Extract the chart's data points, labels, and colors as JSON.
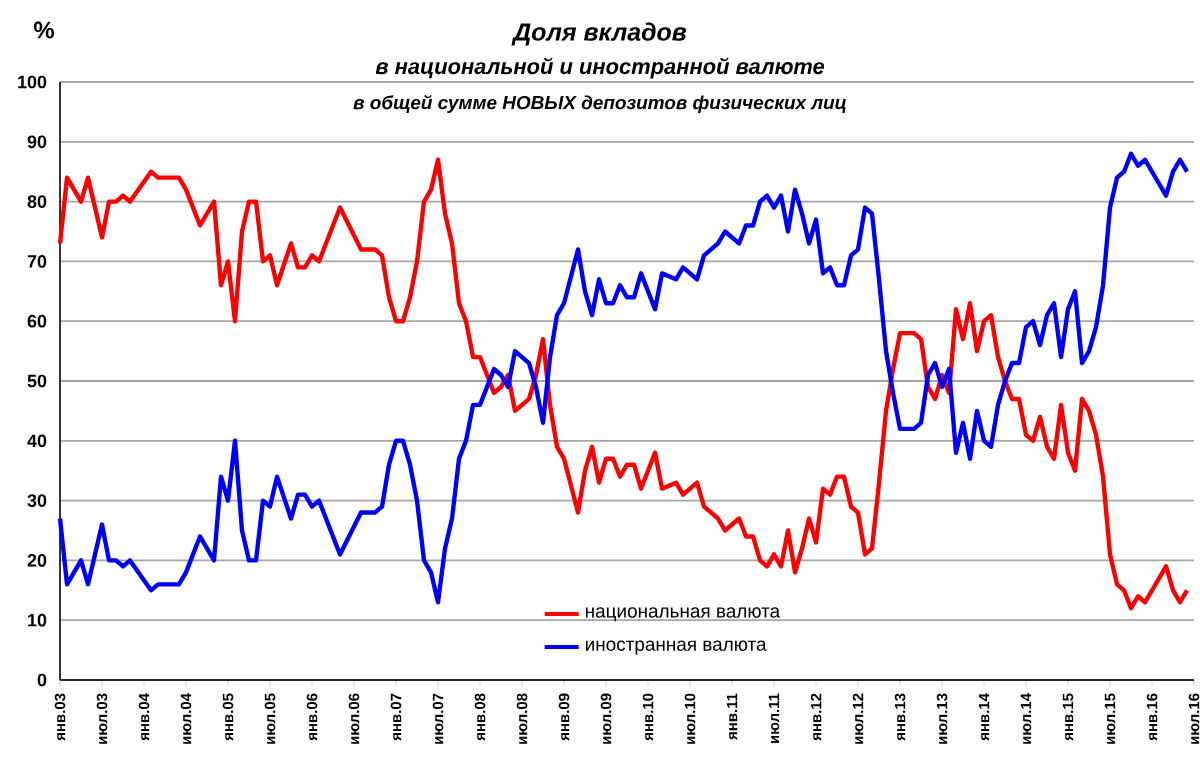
{
  "chart_data": {
    "type": "line",
    "title": "Доля вкладов",
    "subtitle": "в национальной  и иностранной  валюте",
    "annotations": [
      "в общей сумме **НОВЫХ** депозитов физических лиц"
    ],
    "ylabel": "%",
    "x": [
      "2003-01",
      "2003-02",
      "2003-04",
      "2003-05",
      "2003-07",
      "2003-08",
      "2003-09",
      "2003-10",
      "2003-11",
      "2004-02",
      "2004-03",
      "2004-05",
      "2004-06",
      "2004-07",
      "2004-09",
      "2004-11",
      "2004-12",
      "2005-01",
      "2005-02",
      "2005-03",
      "2005-04",
      "2005-05",
      "2005-06",
      "2005-07",
      "2005-08",
      "2005-10",
      "2005-11",
      "2005-12",
      "2006-01",
      "2006-02",
      "2006-05",
      "2006-08",
      "2006-10",
      "2006-11",
      "2006-12",
      "2007-01",
      "2007-02",
      "2007-03",
      "2007-04",
      "2007-05",
      "2007-06",
      "2007-07",
      "2007-08",
      "2007-09",
      "2007-10",
      "2007-11",
      "2007-12",
      "2008-01",
      "2008-03",
      "2008-04",
      "2008-05",
      "2008-06",
      "2008-08",
      "2008-09",
      "2008-10",
      "2008-11",
      "2008-12",
      "2009-01",
      "2009-03",
      "2009-04",
      "2009-05",
      "2009-06",
      "2009-07",
      "2009-08",
      "2009-09",
      "2009-10",
      "2009-11",
      "2009-12",
      "2010-02",
      "2010-03",
      "2010-05",
      "2010-06",
      "2010-08",
      "2010-09",
      "2010-11",
      "2010-12",
      "2011-02",
      "2011-03",
      "2011-04",
      "2011-05",
      "2011-06",
      "2011-07",
      "2011-08",
      "2011-09",
      "2011-10",
      "2011-11",
      "2011-12",
      "2012-01",
      "2012-02",
      "2012-03",
      "2012-04",
      "2012-05",
      "2012-06",
      "2012-07",
      "2012-08",
      "2012-09",
      "2012-10",
      "2012-11",
      "2012-12",
      "2013-01",
      "2013-03",
      "2013-04",
      "2013-05",
      "2013-06",
      "2013-07",
      "2013-08",
      "2013-09",
      "2013-10",
      "2013-11",
      "2013-12",
      "2014-01",
      "2014-02",
      "2014-03",
      "2014-04",
      "2014-05",
      "2014-06",
      "2014-07",
      "2014-08",
      "2014-09",
      "2014-10",
      "2014-11",
      "2014-12",
      "2015-01",
      "2015-02",
      "2015-03",
      "2015-04",
      "2015-05",
      "2015-06",
      "2015-07",
      "2015-08",
      "2015-09",
      "2015-10",
      "2015-11",
      "2015-12",
      "2016-01",
      "2016-03",
      "2016-04",
      "2016-05",
      "2016-06"
    ],
    "series": [
      {
        "name": "национальная валюта",
        "color": "#ff0000",
        "values": [
          73,
          84,
          80,
          84,
          74,
          80,
          80,
          81,
          80,
          85,
          84,
          84,
          84,
          82,
          76,
          80,
          66,
          70,
          60,
          75,
          80,
          80,
          70,
          71,
          66,
          73,
          69,
          69,
          71,
          70,
          79,
          72,
          72,
          71,
          64,
          60,
          60,
          64,
          70,
          80,
          82,
          87,
          78,
          73,
          63,
          60,
          54,
          54,
          48,
          49,
          51,
          45,
          47,
          51,
          57,
          46,
          39,
          37,
          28,
          35,
          39,
          33,
          37,
          37,
          34,
          36,
          36,
          32,
          38,
          32,
          33,
          31,
          33,
          29,
          27,
          25,
          27,
          24,
          24,
          20,
          19,
          21,
          19,
          25,
          18,
          22,
          27,
          23,
          32,
          31,
          34,
          34,
          29,
          28,
          21,
          22,
          33,
          45,
          52,
          58,
          58,
          57,
          49,
          47,
          51,
          48,
          62,
          57,
          63,
          55,
          60,
          61,
          54,
          50,
          47,
          47,
          41,
          40,
          44,
          39,
          37,
          46,
          38,
          35,
          47,
          45,
          41,
          34,
          21,
          16,
          15,
          12,
          14,
          13,
          15,
          19,
          15,
          13,
          15
        ]
      },
      {
        "name": "иностранная валюта",
        "color": "#0000ff",
        "values": [
          27,
          16,
          20,
          16,
          26,
          20,
          20,
          19,
          20,
          15,
          16,
          16,
          16,
          18,
          24,
          20,
          34,
          30,
          40,
          25,
          20,
          20,
          30,
          29,
          34,
          27,
          31,
          31,
          29,
          30,
          21,
          28,
          28,
          29,
          36,
          40,
          40,
          36,
          30,
          20,
          18,
          13,
          22,
          27,
          37,
          40,
          46,
          46,
          52,
          51,
          49,
          55,
          53,
          49,
          43,
          54,
          61,
          63,
          72,
          65,
          61,
          67,
          63,
          63,
          66,
          64,
          64,
          68,
          62,
          68,
          67,
          69,
          67,
          71,
          73,
          75,
          73,
          76,
          76,
          80,
          81,
          79,
          81,
          75,
          82,
          78,
          73,
          77,
          68,
          69,
          66,
          66,
          71,
          72,
          79,
          78,
          67,
          55,
          48,
          42,
          42,
          43,
          51,
          53,
          49,
          52,
          38,
          43,
          37,
          45,
          40,
          39,
          46,
          50,
          53,
          53,
          59,
          60,
          56,
          61,
          63,
          54,
          62,
          65,
          53,
          55,
          59,
          66,
          79,
          84,
          85,
          88,
          86,
          87,
          85,
          81,
          85,
          87,
          85
        ]
      }
    ],
    "xlim": [
      "2003-01",
      "2016-07"
    ],
    "xticks": [
      {
        "value": "2003-01",
        "label": "янв.03"
      },
      {
        "value": "2003-07",
        "label": "июл.03"
      },
      {
        "value": "2004-01",
        "label": "янв.04"
      },
      {
        "value": "2004-07",
        "label": "июл.04"
      },
      {
        "value": "2005-01",
        "label": "янв.05"
      },
      {
        "value": "2005-07",
        "label": "июл.05"
      },
      {
        "value": "2006-01",
        "label": "янв.06"
      },
      {
        "value": "2006-07",
        "label": "июл.06"
      },
      {
        "value": "2007-01",
        "label": "янв.07"
      },
      {
        "value": "2007-07",
        "label": "июл.07"
      },
      {
        "value": "2008-01",
        "label": "янв.08"
      },
      {
        "value": "2008-07",
        "label": "июл.08"
      },
      {
        "value": "2009-01",
        "label": "янв.09"
      },
      {
        "value": "2009-07",
        "label": "июл.09"
      },
      {
        "value": "2010-01",
        "label": "янв.10"
      },
      {
        "value": "2010-07",
        "label": "июл.10"
      },
      {
        "value": "2011-01",
        "label": "янв.11"
      },
      {
        "value": "2011-07",
        "label": "июл.11"
      },
      {
        "value": "2012-01",
        "label": "янв.12"
      },
      {
        "value": "2012-07",
        "label": "июл.12"
      },
      {
        "value": "2013-01",
        "label": "янв.13"
      },
      {
        "value": "2013-07",
        "label": "июл.13"
      },
      {
        "value": "2014-01",
        "label": "янв.14"
      },
      {
        "value": "2014-07",
        "label": "июл.14"
      },
      {
        "value": "2015-01",
        "label": "янв.15"
      },
      {
        "value": "2015-07",
        "label": "июл.15"
      },
      {
        "value": "2016-01",
        "label": "янв.16"
      },
      {
        "value": "2016-07",
        "label": "июл.16"
      }
    ],
    "ylim": [
      0,
      100
    ],
    "yticks": [
      0,
      10,
      20,
      30,
      40,
      50,
      60,
      70,
      80,
      90,
      100
    ],
    "grid": "y",
    "legend": "bottom",
    "marker": "none",
    "line_style": "solid"
  }
}
